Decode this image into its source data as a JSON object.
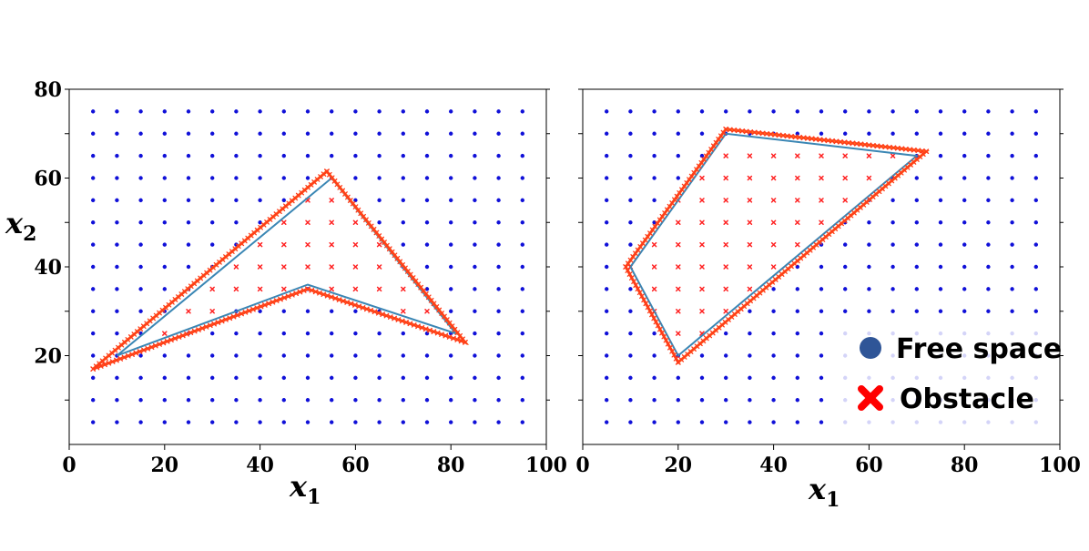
{
  "chart_data": [
    {
      "type": "scatter",
      "title": "",
      "xlabel": "x",
      "xlabel_sub": "1",
      "ylabel": "x",
      "ylabel_sub": "2",
      "xlim": [
        0,
        100
      ],
      "ylim": [
        0,
        80
      ],
      "xticks": [
        0,
        20,
        40,
        60,
        80,
        100
      ],
      "yticks": [
        20,
        40,
        60,
        80
      ],
      "grid_step": 5,
      "colors": {
        "free": "#1010d8",
        "obstacle": "#ff2020",
        "outline": "#ff6a1a",
        "polygon": "#3a86b4"
      },
      "polygon": [
        [
          10,
          20
        ],
        [
          55,
          60
        ],
        [
          81,
          25
        ],
        [
          50,
          36
        ],
        [
          10,
          20
        ]
      ],
      "outline": [
        [
          5,
          17
        ],
        [
          54,
          61.5
        ],
        [
          83,
          23
        ],
        [
          50,
          35
        ],
        [
          5,
          17
        ]
      ]
    },
    {
      "type": "scatter",
      "title": "",
      "xlabel": "x",
      "xlabel_sub": "1",
      "xlim": [
        0,
        100
      ],
      "ylim": [
        0,
        80
      ],
      "xticks": [
        0,
        20,
        40,
        60,
        80,
        100
      ],
      "grid_step": 5,
      "colors": {
        "free": "#1010d8",
        "obstacle": "#ff2020",
        "outline": "#ff6a1a",
        "polygon": "#3a86b4"
      },
      "polygon": [
        [
          10,
          40
        ],
        [
          30,
          70
        ],
        [
          70,
          65
        ],
        [
          20,
          20
        ],
        [
          10,
          40
        ]
      ],
      "outline": [
        [
          9,
          40
        ],
        [
          30,
          71
        ],
        [
          72,
          66
        ],
        [
          20,
          18.5
        ],
        [
          9,
          40
        ]
      ],
      "legend": {
        "placement": "bottom-right",
        "items": [
          {
            "label": "Free space",
            "marker": "circle",
            "color": "#2f5597"
          },
          {
            "label": "Obstacle",
            "marker": "x",
            "color": "#ff0000"
          }
        ]
      }
    }
  ]
}
